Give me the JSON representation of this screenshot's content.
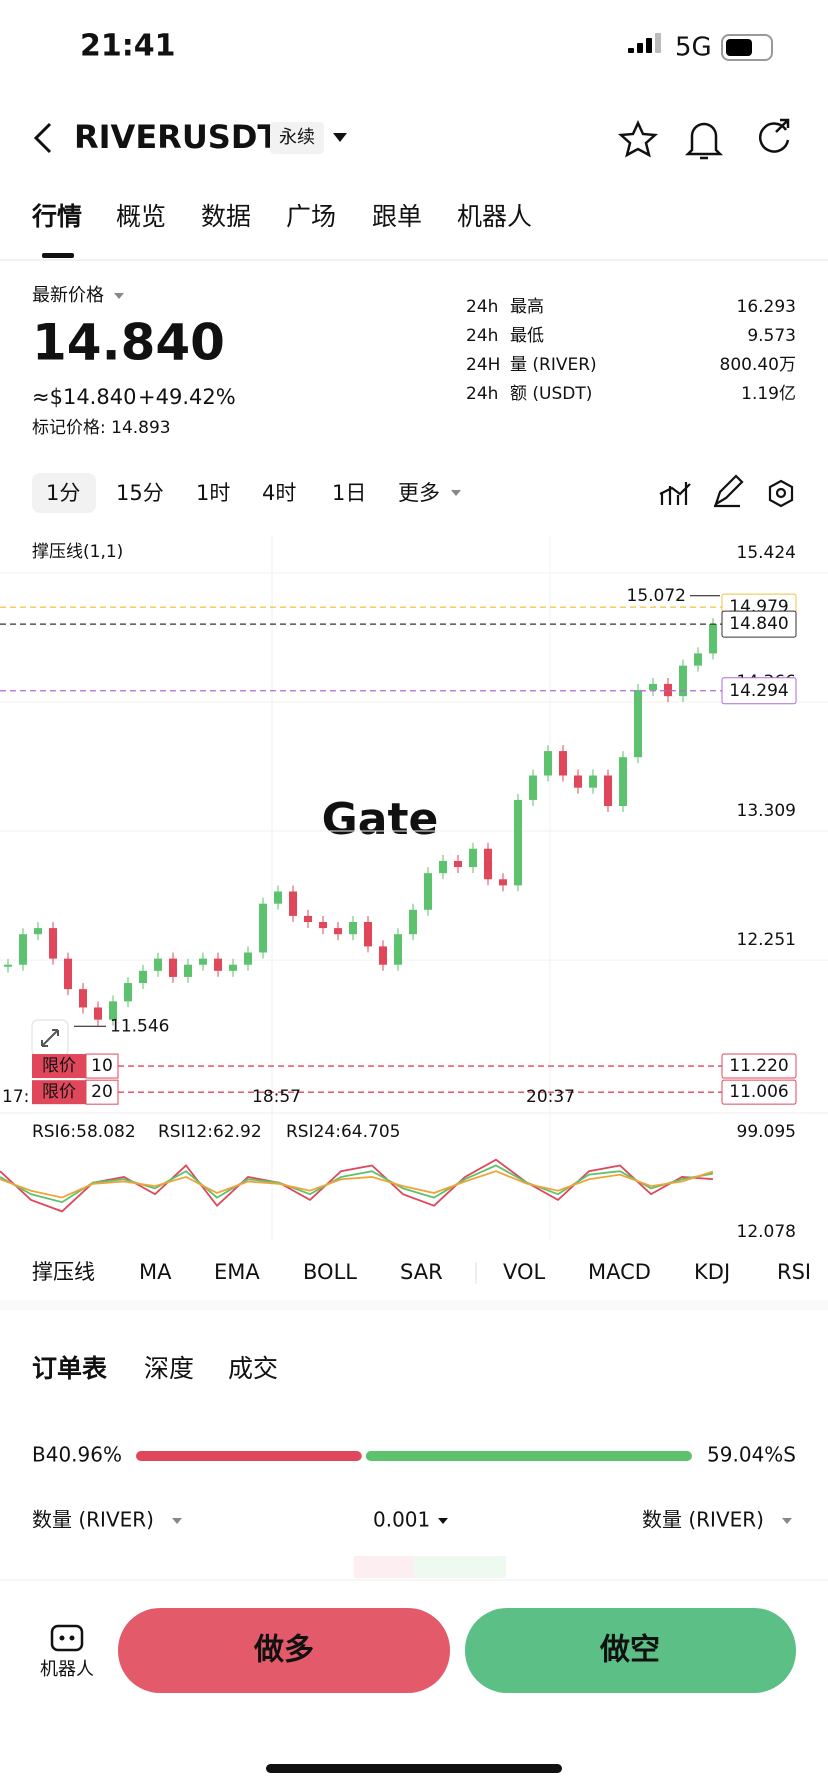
{
  "status_bar": {
    "time": "21:41",
    "network": "5G"
  },
  "header": {
    "symbol": "RIVERUSDT",
    "badge": "永续"
  },
  "tabs": [
    "行情",
    "概览",
    "数据",
    "广场",
    "跟单",
    "机器人"
  ],
  "price_panel": {
    "label": "最新价格",
    "price": "14.840",
    "usd": "≈$14.840",
    "change": "+49.42%",
    "mark_price": "标记价格: 14.893",
    "stats": [
      {
        "period": "24h",
        "label": "最高",
        "value": "16.293"
      },
      {
        "period": "24h",
        "label": "最低",
        "value": "9.573"
      },
      {
        "period": "24H",
        "label": "量 (RIVER)",
        "value": "800.40万"
      },
      {
        "period": "24h",
        "label": "额 (USDT)",
        "value": "1.19亿"
      }
    ]
  },
  "timeframes": [
    "1分",
    "15分",
    "1时",
    "4时",
    "1日",
    "更多"
  ],
  "chart": {
    "type": "candlestick",
    "indicator_label": "撑压线(1,1)",
    "watermark": "Gate",
    "ylim": [
      10.86,
      15.57
    ],
    "yticks": [
      15.424,
      14.366,
      13.309,
      12.251
    ],
    "closes": [
      12.05,
      12.3,
      12.35,
      12.1,
      11.85,
      11.7,
      11.6,
      11.75,
      11.9,
      12.0,
      12.1,
      11.95,
      12.05,
      12.1,
      12.0,
      12.05,
      12.15,
      12.55,
      12.65,
      12.45,
      12.4,
      12.35,
      12.3,
      12.4,
      12.2,
      12.05,
      12.3,
      12.5,
      12.8,
      12.9,
      12.85,
      13.0,
      12.75,
      12.7,
      13.4,
      13.6,
      13.8,
      13.6,
      13.5,
      13.6,
      13.35,
      13.75,
      14.3,
      14.35,
      14.25,
      14.5,
      14.6,
      14.84
    ],
    "high": 15.072,
    "low": 11.546,
    "price_lines": [
      {
        "value": 14.979,
        "color": "#f0c040"
      },
      {
        "value": {
          "value": 14.84,
          "label": "14.840"
        },
        "color": "#333333"
      },
      {
        "value": 14.294,
        "color": "#b06ad8"
      }
    ],
    "limit_orders": [
      {
        "label": "限价",
        "qty": "10",
        "price": {
          "value": 11.22,
          "label": "11.220"
        }
      },
      {
        "label": "限价",
        "qty": "20",
        "price": {
          "value": 11.006,
          "label": "11.006"
        }
      }
    ],
    "time_labels": [
      "17:",
      "18:57",
      "20:37"
    ]
  },
  "rsi": {
    "ylim": [
      12.078,
      99.095
    ],
    "yticks": [
      99.095,
      12.078
    ],
    "series": [
      {
        "name": "RSI6:58.082",
        "color": "#e0475b",
        "values": [
          65,
          40,
          30,
          55,
          60,
          45,
          70,
          35,
          60,
          55,
          40,
          65,
          70,
          45,
          35,
          60,
          75,
          55,
          40,
          65,
          70,
          45,
          60,
          58.082
        ]
      },
      {
        "name": "RSI12:62.92",
        "color": "#5dc26d",
        "values": [
          60,
          45,
          38,
          55,
          58,
          50,
          65,
          42,
          58,
          55,
          45,
          60,
          65,
          50,
          42,
          58,
          70,
          55,
          45,
          62,
          65,
          50,
          58,
          62.92
        ]
      },
      {
        "name": "RSI24:64.705",
        "color": "#f0a33a",
        "values": [
          58,
          48,
          42,
          54,
          56,
          52,
          60,
          46,
          56,
          54,
          48,
          58,
          60,
          52,
          46,
          56,
          65,
          54,
          48,
          58,
          62,
          52,
          56,
          64.705
        ]
      }
    ]
  },
  "indicator_tabs": [
    "撑压线",
    "MA",
    "EMA",
    "BOLL",
    "SAR",
    "VOL",
    "MACD",
    "KDJ",
    "RSI"
  ],
  "orderbook": {
    "tabs": [
      "订单表",
      "深度",
      "成交"
    ],
    "buy": {
      "value": 40.96,
      "label": "B40.96%"
    },
    "sell": {
      "value": 59.04,
      "label": "59.04%S"
    },
    "columns": [
      "数量 (RIVER)",
      "0.001",
      "数量 (RIVER)"
    ]
  },
  "bottom": {
    "robot": "机器人",
    "long": "做多",
    "short": "做空"
  }
}
